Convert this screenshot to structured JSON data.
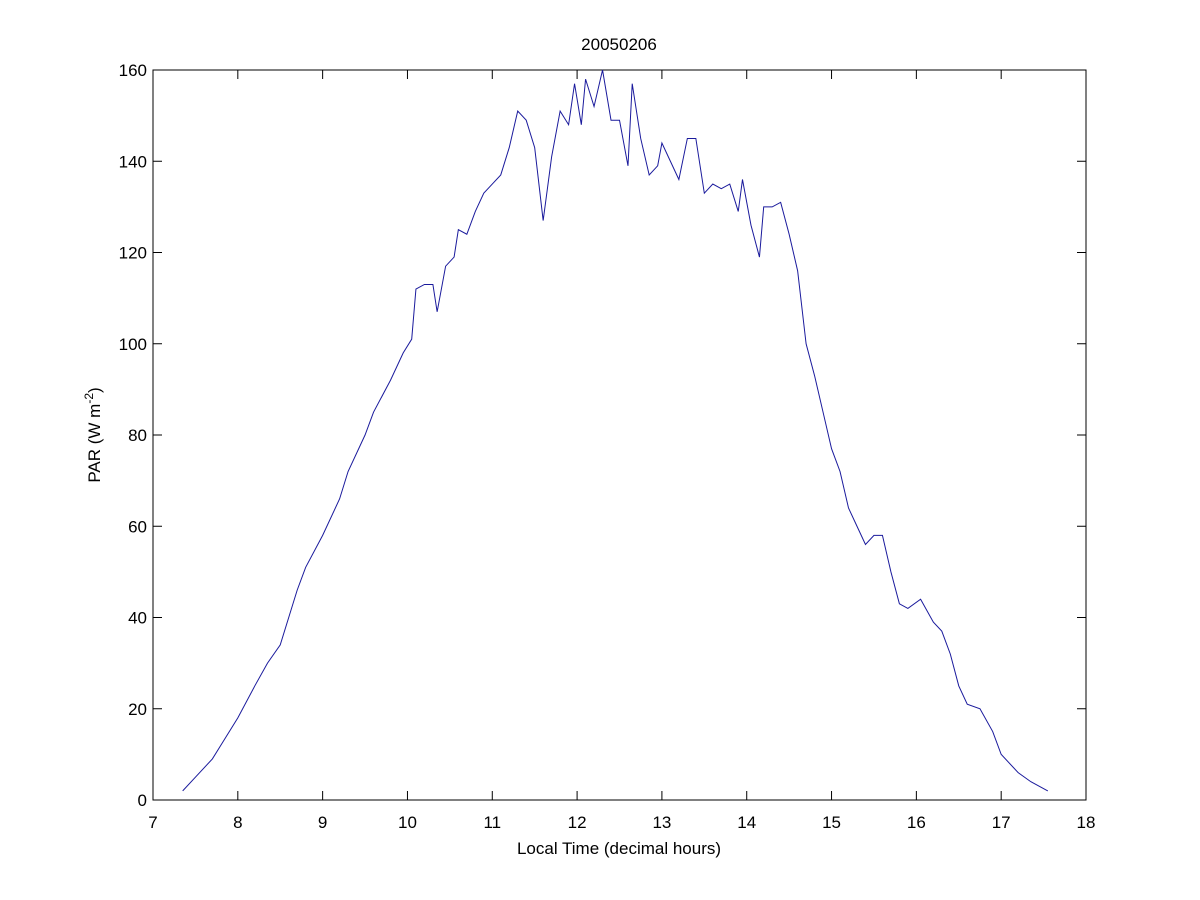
{
  "chart_data": {
    "type": "line",
    "title": "20050206",
    "xlabel": "Local Time (decimal hours)",
    "ylabel": {
      "text": "PAR (W m",
      "superscript": "-2",
      "suffix": ")"
    },
    "x": [
      7.35,
      7.5,
      7.7,
      7.8,
      8.0,
      8.2,
      8.35,
      8.5,
      8.6,
      8.7,
      8.8,
      9.0,
      9.2,
      9.3,
      9.5,
      9.6,
      9.8,
      9.95,
      10.05,
      10.1,
      10.2,
      10.3,
      10.35,
      10.45,
      10.55,
      10.6,
      10.7,
      10.8,
      10.9,
      11.0,
      11.1,
      11.2,
      11.3,
      11.4,
      11.5,
      11.6,
      11.7,
      11.8,
      11.9,
      11.97,
      12.05,
      12.1,
      12.2,
      12.3,
      12.4,
      12.5,
      12.6,
      12.65,
      12.75,
      12.85,
      12.95,
      13.0,
      13.1,
      13.2,
      13.3,
      13.4,
      13.5,
      13.6,
      13.7,
      13.8,
      13.9,
      13.95,
      14.05,
      14.15,
      14.2,
      14.3,
      14.4,
      14.5,
      14.6,
      14.7,
      14.8,
      14.9,
      15.0,
      15.1,
      15.2,
      15.3,
      15.4,
      15.5,
      15.6,
      15.7,
      15.8,
      15.9,
      16.05,
      16.2,
      16.3,
      16.4,
      16.5,
      16.6,
      16.75,
      16.9,
      17.0,
      17.2,
      17.35,
      17.55
    ],
    "series": [
      {
        "color": "#1a1a9c",
        "values": [
          2,
          5,
          9,
          12,
          18,
          25,
          30,
          34,
          40,
          46,
          51,
          58,
          66,
          72,
          80,
          85,
          92,
          98,
          101,
          112,
          113,
          113,
          107,
          117,
          119,
          125,
          124,
          129,
          133,
          135,
          137,
          143,
          151,
          149,
          143,
          127,
          141,
          151,
          148,
          157,
          148,
          158,
          152,
          160,
          149,
          149,
          139,
          157,
          145,
          137,
          139,
          144,
          140,
          136,
          145,
          145,
          133,
          135,
          134,
          135,
          129,
          136,
          126,
          119,
          130,
          130,
          131,
          124,
          116,
          100,
          93,
          85,
          77,
          72,
          64,
          60,
          56,
          58,
          58,
          50,
          43,
          42,
          44,
          39,
          37,
          32,
          25,
          21,
          20,
          15,
          10,
          6,
          4,
          2
        ]
      }
    ],
    "xlim": [
      7,
      18
    ],
    "xticks": [
      7,
      8,
      9,
      10,
      11,
      12,
      13,
      14,
      15,
      16,
      17,
      18
    ],
    "ylim": [
      0,
      160
    ],
    "yticks": [
      0,
      20,
      40,
      60,
      80,
      100,
      120,
      140,
      160
    ]
  }
}
